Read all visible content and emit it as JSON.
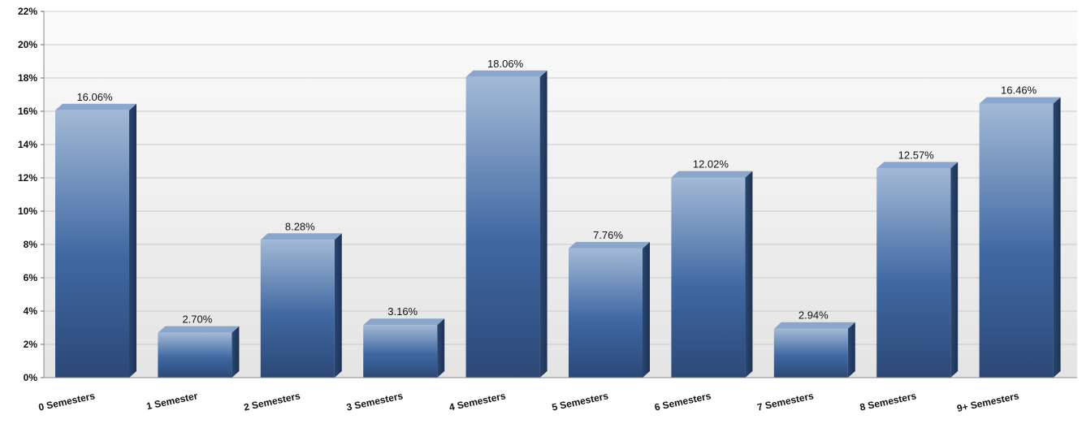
{
  "chart_data": {
    "type": "bar",
    "categories": [
      "0 Semesters",
      "1 Semester",
      "2 Semesters",
      "3 Semesters",
      "4 Semesters",
      "5 Semesters",
      "6 Semesters",
      "7 Semesters",
      "8 Semesters",
      "9+ Semesters"
    ],
    "values": [
      16.06,
      2.7,
      8.28,
      3.16,
      18.06,
      7.76,
      12.02,
      2.94,
      12.57,
      16.46
    ],
    "data_labels": [
      "16.06%",
      "2.70%",
      "8.28%",
      "3.16%",
      "18.06%",
      "7.76%",
      "12.02%",
      "2.94%",
      "12.57%",
      "16.46%"
    ],
    "y_ticks": [
      0,
      2,
      4,
      6,
      8,
      10,
      12,
      14,
      16,
      18,
      20,
      22
    ],
    "y_tick_labels": [
      "0%",
      "2%",
      "4%",
      "6%",
      "8%",
      "10%",
      "12%",
      "14%",
      "16%",
      "18%",
      "20%",
      "22%"
    ],
    "ylim": [
      0,
      22
    ],
    "grid": true,
    "legend": false,
    "colors": {
      "bar_top": "#9fb6d4",
      "bar_mid": "#3d66a0",
      "bar_bottom": "#2d4a78",
      "bar_side": "#223a5e",
      "bar_cap": "#8aa6cb",
      "plot_bg_top": "#fafafa",
      "plot_bg_bottom": "#e6e6e6",
      "grid": "#c8c8c8"
    }
  }
}
